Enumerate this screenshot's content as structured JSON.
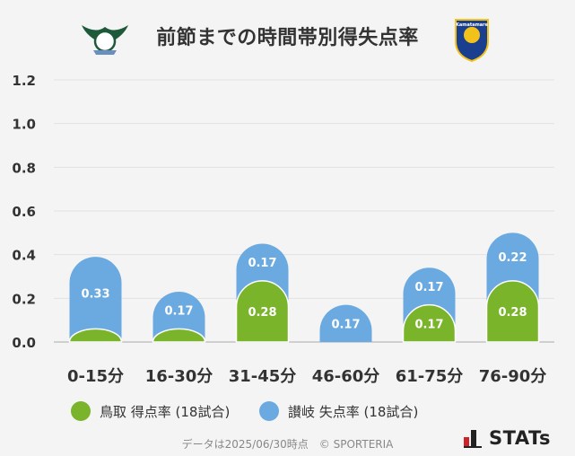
{
  "title": "前節までの時間帯別得失点率",
  "logos": {
    "left": {
      "colors": {
        "primary": "#1e5a3a",
        "accent": "#6a8fbf"
      }
    },
    "right": {
      "text": "Kamatamare",
      "colors": {
        "primary": "#1a3f8f",
        "accent": "#f2c21a"
      }
    }
  },
  "legend": [
    {
      "label": "鳥取 得点率 (18試合)",
      "color": "#7ab42b"
    },
    {
      "label": "讃岐 失点率 (18試合)",
      "color": "#6aaae0"
    }
  ],
  "footer": "データは2025/06/30時点　© SPORTERIA",
  "brand": "STATs",
  "chart_data": {
    "type": "bar",
    "categories": [
      "0-15分",
      "16-30分",
      "31-45分",
      "46-60分",
      "61-75分",
      "76-90分"
    ],
    "series": [
      {
        "name": "鳥取 得点率 (18試合)",
        "color": "#7ab42b",
        "values": [
          0.06,
          0.06,
          0.28,
          0,
          0.17,
          0.28
        ],
        "labels": [
          "",
          "",
          "0.28",
          "",
          "0.17",
          "0.28"
        ]
      },
      {
        "name": "讃岐 失点率 (18試合)",
        "color": "#6aaae0",
        "values": [
          0.33,
          0.17,
          0.17,
          0.17,
          0.17,
          0.22
        ],
        "labels": [
          "0.33",
          "0.17",
          "0.17",
          "0.17",
          "0.17",
          "0.22"
        ]
      }
    ],
    "stacked": true,
    "ylim": [
      0,
      1.2
    ],
    "yticks": [
      "0.0",
      "0.2",
      "0.4",
      "0.6",
      "0.8",
      "1.0",
      "1.2"
    ],
    "grid": true,
    "legend_position": "bottom"
  }
}
